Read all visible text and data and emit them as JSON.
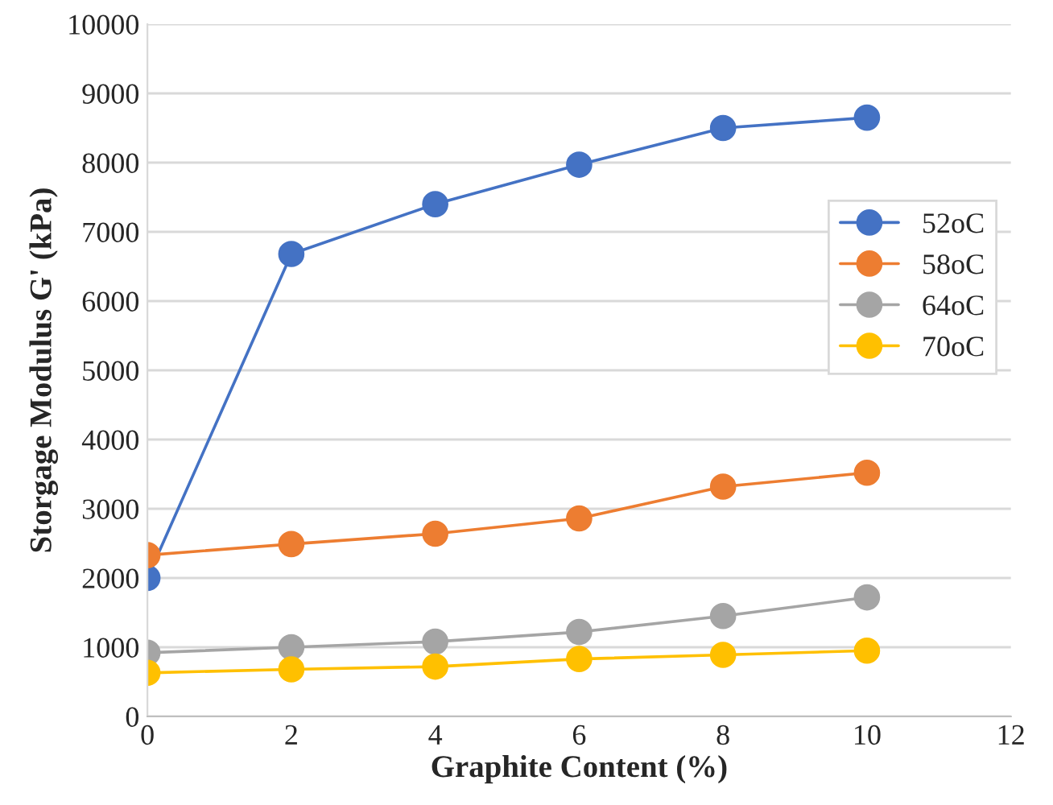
{
  "chart_data": {
    "type": "line",
    "xlabel": "Graphite Content (%)",
    "ylabel": "Storgage Modulus G' (kPa)",
    "x": [
      0,
      2,
      4,
      6,
      8,
      10
    ],
    "series": [
      {
        "name": "52oC",
        "color": "#4472c4",
        "values": [
          2000,
          6680,
          7400,
          7970,
          8500,
          8650
        ]
      },
      {
        "name": "58oC",
        "color": "#ed7d31",
        "values": [
          2330,
          2490,
          2640,
          2860,
          3320,
          3520
        ]
      },
      {
        "name": "64oC",
        "color": "#a5a5a5",
        "values": [
          920,
          1000,
          1080,
          1220,
          1450,
          1720
        ]
      },
      {
        "name": "70oC",
        "color": "#ffc000",
        "values": [
          630,
          680,
          720,
          830,
          890,
          950
        ]
      }
    ],
    "xlim": [
      0,
      12
    ],
    "xticks": [
      0,
      2,
      4,
      6,
      8,
      10,
      12
    ],
    "ylim": [
      0,
      10000
    ],
    "yticks": [
      0,
      1000,
      2000,
      3000,
      4000,
      5000,
      6000,
      7000,
      8000,
      9000,
      10000
    ],
    "grid": "y",
    "legend": "right",
    "marker": "circle",
    "line_style": "solid"
  }
}
